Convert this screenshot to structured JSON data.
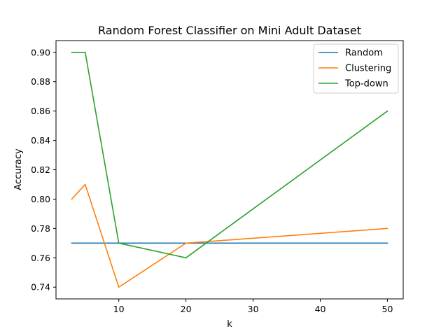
{
  "chart_data": {
    "type": "line",
    "title": "Random Forest Classifier on Mini Adult Dataset",
    "xlabel": "k",
    "ylabel": "Accuracy",
    "x": [
      3,
      5,
      10,
      20,
      50
    ],
    "xlim": [
      0.65,
      52.35
    ],
    "ylim": [
      0.732,
      0.908
    ],
    "xticks": [
      10,
      20,
      30,
      40,
      50
    ],
    "yticks": [
      0.74,
      0.76,
      0.78,
      0.8,
      0.82,
      0.84,
      0.86,
      0.88,
      0.9
    ],
    "xtick_labels": [
      "10",
      "20",
      "30",
      "40",
      "50"
    ],
    "ytick_labels": [
      "0.74",
      "0.76",
      "0.78",
      "0.80",
      "0.82",
      "0.84",
      "0.86",
      "0.88",
      "0.90"
    ],
    "grid": false,
    "legend_position": "top-right",
    "series": [
      {
        "name": "Random",
        "color": "#1f77b4",
        "values": [
          0.77,
          0.77,
          0.77,
          0.77,
          0.77
        ]
      },
      {
        "name": "Clustering",
        "color": "#ff7f0e",
        "values": [
          0.8,
          0.81,
          0.74,
          0.77,
          0.78
        ]
      },
      {
        "name": "Top-down",
        "color": "#2ca02c",
        "values": [
          0.9,
          0.9,
          0.77,
          0.76,
          0.86
        ]
      }
    ]
  }
}
